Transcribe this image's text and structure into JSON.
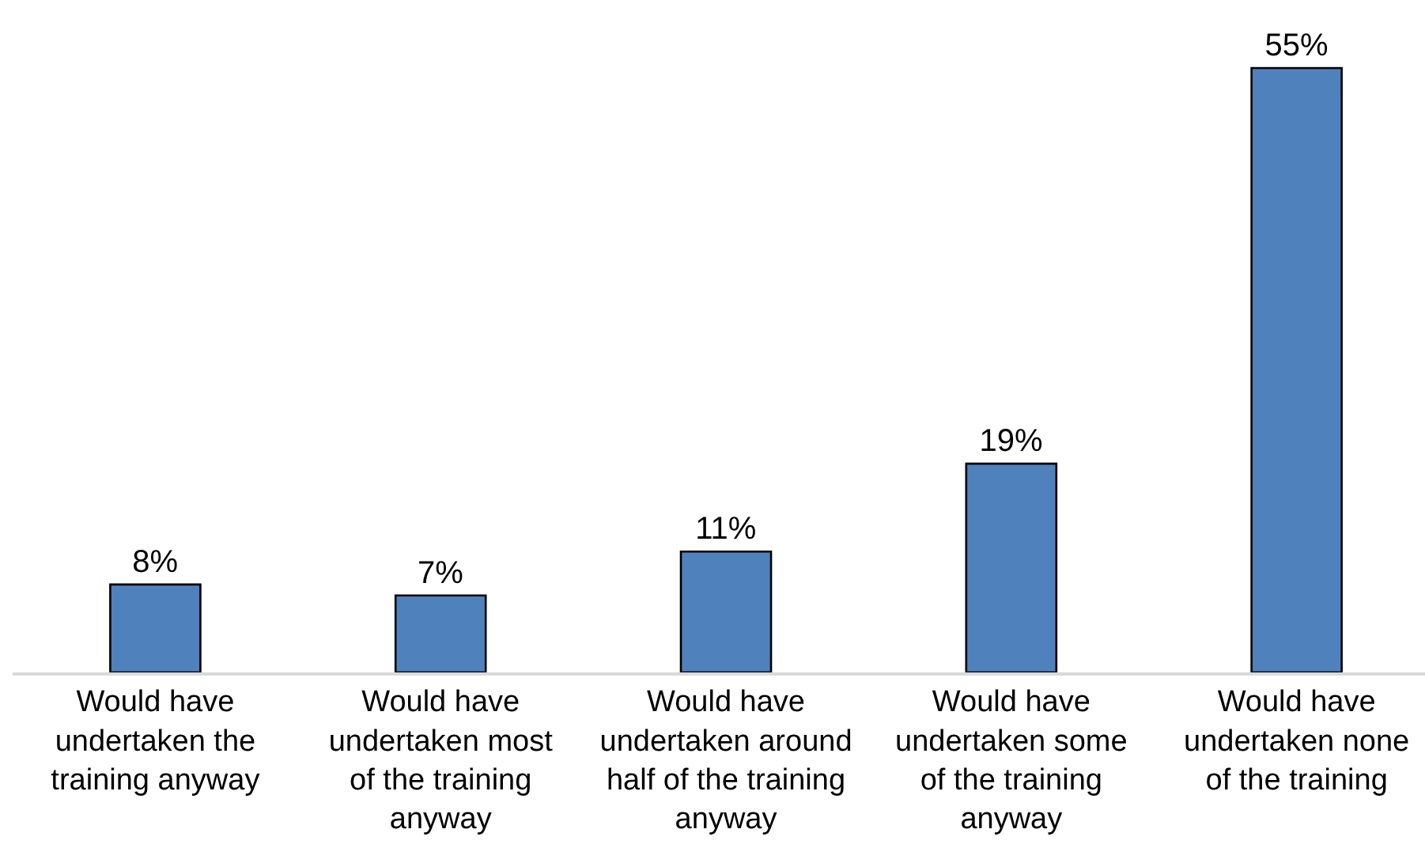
{
  "chart_data": {
    "type": "bar",
    "categories": [
      "Would have undertaken the training anyway",
      "Would have undertaken most of the training anyway",
      "Would have undertaken around half of the training anyway",
      "Would have undertaken some of the training anyway",
      "Would have undertaken none of the training"
    ],
    "values": [
      8,
      7,
      11,
      19,
      55
    ],
    "value_labels": [
      "8%",
      "7%",
      "11%",
      "19%",
      "55%"
    ],
    "color": "#4f81bd",
    "tick_labels": "x"
  }
}
